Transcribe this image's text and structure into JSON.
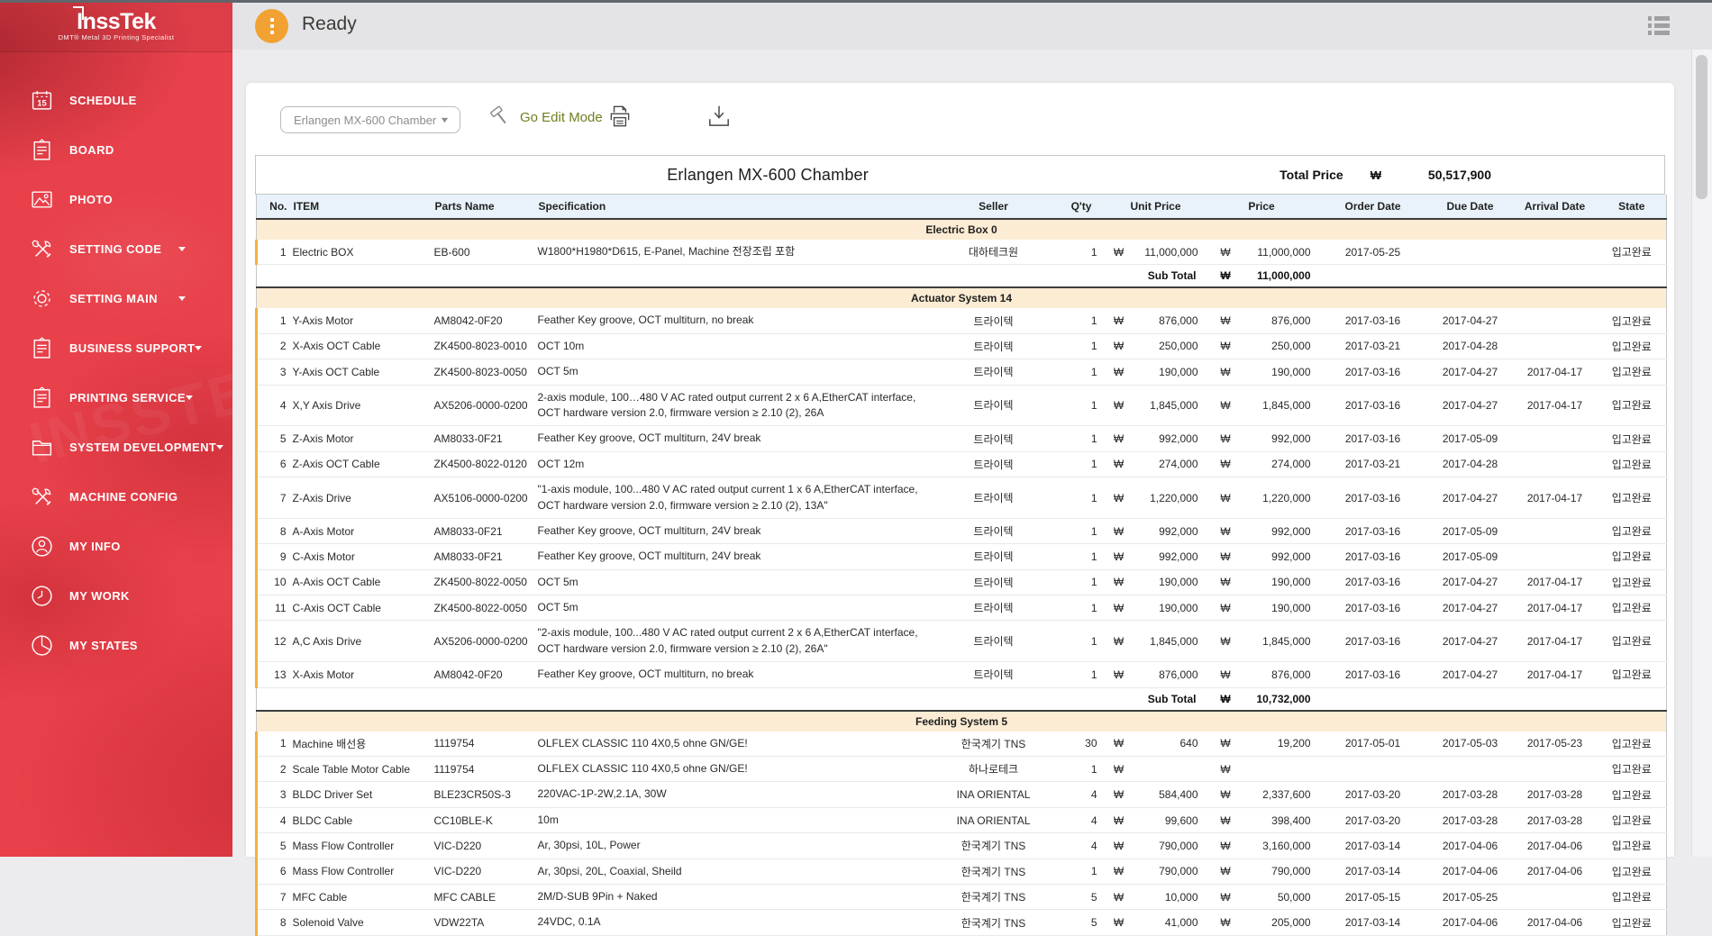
{
  "colors": {
    "sidebar_red": "#e8414b",
    "status_orange": "#f2a233",
    "edit_mode_green": "#6e7f1f",
    "table_header_bg": "#e9f2fb",
    "section_bg": "#fbecd3",
    "row_accent_orange": "#f3b13c"
  },
  "sidebar": {
    "logo_title": "InssTek",
    "logo_subtitle": "DMT® Metal 3D Printing Specialist",
    "items": [
      {
        "label": "SCHEDULE",
        "icon": "calendar-icon",
        "has_submenu": false
      },
      {
        "label": "BOARD",
        "icon": "clipboard-icon",
        "has_submenu": false
      },
      {
        "label": "PHOTO",
        "icon": "photo-icon",
        "has_submenu": false
      },
      {
        "label": "SETTING CODE",
        "icon": "tools-icon",
        "has_submenu": true
      },
      {
        "label": "SETTING MAIN",
        "icon": "gear-icon",
        "has_submenu": true
      },
      {
        "label": "BUSINESS SUPPORT",
        "icon": "clipboard-icon",
        "has_submenu": true
      },
      {
        "label": "PRINTING SERVICE",
        "icon": "clipboard-icon",
        "has_submenu": true
      },
      {
        "label": "SYSTEM DEVELOPMENT",
        "icon": "folder-icon",
        "has_submenu": true
      },
      {
        "label": "MACHINE CONFIG",
        "icon": "tools-icon",
        "has_submenu": false
      },
      {
        "label": "MY INFO",
        "icon": "person-icon",
        "has_submenu": false
      },
      {
        "label": "MY WORK",
        "icon": "clock-icon",
        "has_submenu": false
      },
      {
        "label": "MY STATES",
        "icon": "pie-chart-icon",
        "has_submenu": false
      }
    ]
  },
  "header": {
    "status": "Ready",
    "status_icon": "ellipsis-badge-icon",
    "menu_icon": "list-icon"
  },
  "toolbar": {
    "chamber_select": "Erlangen MX-600 Chamber",
    "select_caret_icon": "chevron-down-icon",
    "edit_mode_label": "Go Edit Mode",
    "edit_mode_icon": "hammer-icon",
    "print_icon": "print-icon",
    "download_icon": "download-icon"
  },
  "table": {
    "title": "Erlangen MX-600 Chamber",
    "total_price_label": "Total Price",
    "currency": "₩",
    "total_price": "50,517,900",
    "subtotal_label": "Sub Total",
    "columns": [
      "No.",
      "ITEM",
      "Parts Name",
      "Specification",
      "Seller",
      "Q'ty",
      "Unit Price",
      "Price",
      "Order Date",
      "Due Date",
      "Arrival Date",
      "State"
    ],
    "sections": [
      {
        "name": "Electric Box 0",
        "subtotal": "11,000,000",
        "rows": [
          {
            "no": "1",
            "item": "Electric BOX",
            "parts": "EB-600",
            "spec": "W1800*H1980*D615, E-Panel, Machine 전장조립 포함",
            "seller": "대하테크원",
            "qty": "1",
            "unit_price": "11,000,000",
            "price": "11,000,000",
            "order_date": "2017-05-25",
            "due_date": "",
            "arrival_date": "",
            "state": "입고완료"
          }
        ]
      },
      {
        "name": "Actuator System 14",
        "subtotal": "10,732,000",
        "rows": [
          {
            "no": "1",
            "item": "Y-Axis Motor",
            "parts": "AM8042-0F20",
            "spec": "Feather Key groove, OCT multiturn, no break",
            "seller": "트라이텍",
            "qty": "1",
            "unit_price": "876,000",
            "price": "876,000",
            "order_date": "2017-03-16",
            "due_date": "2017-04-27",
            "arrival_date": "",
            "state": "입고완료"
          },
          {
            "no": "2",
            "item": "X-Axis OCT Cable",
            "parts": "ZK4500-8023-0010",
            "spec": "OCT 10m",
            "seller": "트라이텍",
            "qty": "1",
            "unit_price": "250,000",
            "price": "250,000",
            "order_date": "2017-03-21",
            "due_date": "2017-04-28",
            "arrival_date": "",
            "state": "입고완료"
          },
          {
            "no": "3",
            "item": "Y-Axis OCT Cable",
            "parts": "ZK4500-8023-0050",
            "spec": "OCT 5m",
            "seller": "트라이텍",
            "qty": "1",
            "unit_price": "190,000",
            "price": "190,000",
            "order_date": "2017-03-16",
            "due_date": "2017-04-27",
            "arrival_date": "2017-04-17",
            "state": "입고완료"
          },
          {
            "no": "4",
            "item": "X,Y Axis Drive",
            "parts": "AX5206-0000-0200",
            "spec": "2-axis module, 100…480 V AC rated output current 2 x 6 A,EtherCAT interface, OCT hardware version 2.0, firmware version ≥ 2.10 (2), 26A",
            "seller": "트라이텍",
            "qty": "1",
            "unit_price": "1,845,000",
            "price": "1,845,000",
            "order_date": "2017-03-16",
            "due_date": "2017-04-27",
            "arrival_date": "2017-04-17",
            "state": "입고완료"
          },
          {
            "no": "5",
            "item": "Z-Axis Motor",
            "parts": "AM8033-0F21",
            "spec": "Feather Key groove, OCT multiturn, 24V break",
            "seller": "트라이텍",
            "qty": "1",
            "unit_price": "992,000",
            "price": "992,000",
            "order_date": "2017-03-16",
            "due_date": "2017-05-09",
            "arrival_date": "",
            "state": "입고완료"
          },
          {
            "no": "6",
            "item": "Z-Axis OCT Cable",
            "parts": "ZK4500-8022-0120",
            "spec": "OCT 12m",
            "seller": "트라이텍",
            "qty": "1",
            "unit_price": "274,000",
            "price": "274,000",
            "order_date": "2017-03-21",
            "due_date": "2017-04-28",
            "arrival_date": "",
            "state": "입고완료"
          },
          {
            "no": "7",
            "item": "Z-Axis Drive",
            "parts": "AX5106-0000-0200",
            "spec": "\"1-axis module, 100...480 V AC rated output current 1 x 6 A,EtherCAT interface, OCT hardware version 2.0, firmware version ≥ 2.10 (2), 13A\"",
            "seller": "트라이텍",
            "qty": "1",
            "unit_price": "1,220,000",
            "price": "1,220,000",
            "order_date": "2017-03-16",
            "due_date": "2017-04-27",
            "arrival_date": "2017-04-17",
            "state": "입고완료"
          },
          {
            "no": "8",
            "item": "A-Axis Motor",
            "parts": "AM8033-0F21",
            "spec": "Feather Key groove, OCT multiturn, 24V break",
            "seller": "트라이텍",
            "qty": "1",
            "unit_price": "992,000",
            "price": "992,000",
            "order_date": "2017-03-16",
            "due_date": "2017-05-09",
            "arrival_date": "",
            "state": "입고완료"
          },
          {
            "no": "9",
            "item": "C-Axis Motor",
            "parts": "AM8033-0F21",
            "spec": "Feather Key groove, OCT multiturn, 24V break",
            "seller": "트라이텍",
            "qty": "1",
            "unit_price": "992,000",
            "price": "992,000",
            "order_date": "2017-03-16",
            "due_date": "2017-05-09",
            "arrival_date": "",
            "state": "입고완료"
          },
          {
            "no": "10",
            "item": "A-Axis OCT Cable",
            "parts": "ZK4500-8022-0050",
            "spec": "OCT 5m",
            "seller": "트라이텍",
            "qty": "1",
            "unit_price": "190,000",
            "price": "190,000",
            "order_date": "2017-03-16",
            "due_date": "2017-04-27",
            "arrival_date": "2017-04-17",
            "state": "입고완료"
          },
          {
            "no": "11",
            "item": "C-Axis OCT Cable",
            "parts": "ZK4500-8022-0050",
            "spec": "OCT 5m",
            "seller": "트라이텍",
            "qty": "1",
            "unit_price": "190,000",
            "price": "190,000",
            "order_date": "2017-03-16",
            "due_date": "2017-04-27",
            "arrival_date": "2017-04-17",
            "state": "입고완료"
          },
          {
            "no": "12",
            "item": "A,C Axis Drive",
            "parts": "AX5206-0000-0200",
            "spec": "\"2-axis module, 100...480 V AC rated output current 2 x 6 A,EtherCAT interface, OCT hardware version 2.0, firmware version ≥ 2.10 (2), 26A\"",
            "seller": "트라이텍",
            "qty": "1",
            "unit_price": "1,845,000",
            "price": "1,845,000",
            "order_date": "2017-03-16",
            "due_date": "2017-04-27",
            "arrival_date": "2017-04-17",
            "state": "입고완료"
          },
          {
            "no": "13",
            "item": "X-Axis Motor",
            "parts": "AM8042-0F20",
            "spec": "Feather Key groove, OCT multiturn, no break",
            "seller": "트라이텍",
            "qty": "1",
            "unit_price": "876,000",
            "price": "876,000",
            "order_date": "2017-03-16",
            "due_date": "2017-04-27",
            "arrival_date": "2017-04-17",
            "state": "입고완료"
          }
        ]
      },
      {
        "name": "Feeding System 5",
        "subtotal": null,
        "rows": [
          {
            "no": "1",
            "item": "Machine 배선용",
            "parts": "1119754",
            "spec": "OLFLEX CLASSIC 110 4X0,5 ohne GN/GE!",
            "seller": "한국계기 TNS",
            "qty": "30",
            "unit_price": "640",
            "price": "19,200",
            "order_date": "2017-05-01",
            "due_date": "2017-05-03",
            "arrival_date": "2017-05-23",
            "state": "입고완료"
          },
          {
            "no": "2",
            "item": "Scale Table Motor Cable",
            "parts": "1119754",
            "spec": "OLFLEX CLASSIC 110 4X0,5 ohne GN/GE!",
            "seller": "하나로테크",
            "qty": "1",
            "unit_price": "",
            "price": "",
            "order_date": "",
            "due_date": "",
            "arrival_date": "",
            "state": "입고완료"
          },
          {
            "no": "3",
            "item": "BLDC Driver Set",
            "parts": "BLE23CR50S-3",
            "spec": "220VAC-1P-2W,2.1A, 30W",
            "seller": "INA ORIENTAL",
            "qty": "4",
            "unit_price": "584,400",
            "price": "2,337,600",
            "order_date": "2017-03-20",
            "due_date": "2017-03-28",
            "arrival_date": "2017-03-28",
            "state": "입고완료"
          },
          {
            "no": "4",
            "item": "BLDC Cable",
            "parts": "CC10BLE-K",
            "spec": "10m",
            "seller": "INA ORIENTAL",
            "qty": "4",
            "unit_price": "99,600",
            "price": "398,400",
            "order_date": "2017-03-20",
            "due_date": "2017-03-28",
            "arrival_date": "2017-03-28",
            "state": "입고완료"
          },
          {
            "no": "5",
            "item": "Mass Flow Controller",
            "parts": "VIC-D220",
            "spec": "Ar, 30psi, 10L, Power",
            "seller": "한국계기 TNS",
            "qty": "4",
            "unit_price": "790,000",
            "price": "3,160,000",
            "order_date": "2017-03-14",
            "due_date": "2017-04-06",
            "arrival_date": "2017-04-06",
            "state": "입고완료"
          },
          {
            "no": "6",
            "item": "Mass Flow Controller",
            "parts": "VIC-D220",
            "spec": "Ar, 30psi, 20L, Coaxial, Sheild",
            "seller": "한국계기 TNS",
            "qty": "1",
            "unit_price": "790,000",
            "price": "790,000",
            "order_date": "2017-03-14",
            "due_date": "2017-04-06",
            "arrival_date": "2017-04-06",
            "state": "입고완료"
          },
          {
            "no": "7",
            "item": "MFC Cable",
            "parts": "MFC CABLE",
            "spec": "2M/D-SUB 9Pin + Naked",
            "seller": "한국계기 TNS",
            "qty": "5",
            "unit_price": "10,000",
            "price": "50,000",
            "order_date": "2017-05-15",
            "due_date": "2017-05-25",
            "arrival_date": "",
            "state": "입고완료"
          },
          {
            "no": "8",
            "item": "Solenoid Valve",
            "parts": "VDW22TA",
            "spec": "24VDC, 0.1A",
            "seller": "한국계기 TNS",
            "qty": "5",
            "unit_price": "41,000",
            "price": "205,000",
            "order_date": "2017-03-14",
            "due_date": "2017-04-06",
            "arrival_date": "2017-04-06",
            "state": "입고완료"
          }
        ]
      }
    ]
  }
}
